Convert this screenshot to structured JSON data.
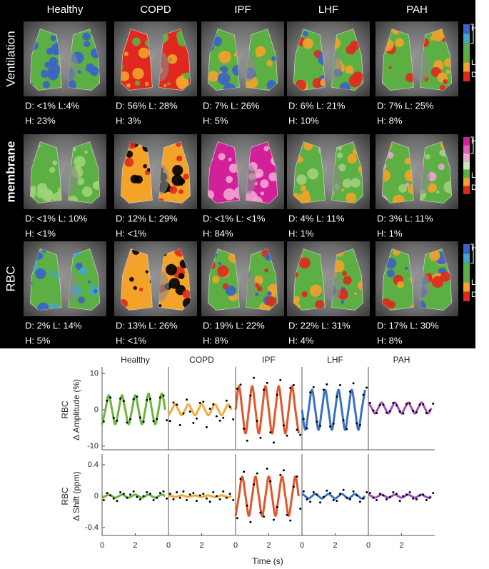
{
  "images": {
    "columns": [
      "Healthy",
      "COPD",
      "IPF",
      "LHF",
      "PAH"
    ],
    "rows": [
      {
        "label": "Ventilation",
        "colorbar": [
          "H",
          "L",
          "D"
        ],
        "stats": [
          [
            "D: <1% L:4%",
            "H: 23%"
          ],
          [
            "D: 56% L: 28%",
            "H: 3%"
          ],
          [
            "D: 7% L: 26%",
            "H: 5%"
          ],
          [
            "D: 6% L: 21%",
            "H: 10%"
          ],
          [
            "D: 7% L: 25%",
            "H: 8%"
          ]
        ]
      },
      {
        "label": "membrane",
        "colorbar": [
          "H",
          "L",
          "D"
        ],
        "stats": [
          [
            "D: <1% L: 10%",
            "H: <1%"
          ],
          [
            "D: 12% L: 29%",
            "H: <1%"
          ],
          [
            "D: <1% L: <1%",
            "H: 84%"
          ],
          [
            "D: 4% L: 11%",
            "H: 1%"
          ],
          [
            "D: 3% L: 11%",
            "H: 1%"
          ]
        ]
      },
      {
        "label": "RBC",
        "colorbar": [
          "H",
          "L",
          "D"
        ],
        "stats": [
          [
            "D: 2% L: 14%",
            "H: 5%"
          ],
          [
            "D: 13% L: 26%",
            "H: <1%"
          ],
          [
            "D: 19% L: 22%",
            "H: 8%"
          ],
          [
            "D: 22% L: 31%",
            "H: 4%"
          ],
          [
            "D: 17% L: 30%",
            "H: 8%"
          ]
        ]
      }
    ]
  },
  "chart_data": [
    {
      "type": "line",
      "ylabel": [
        "RBC",
        "Δ Amplitude (%)"
      ],
      "xlim": [
        0,
        4
      ],
      "ylim": [
        -11,
        11
      ],
      "yticks": [
        -10,
        0,
        10
      ],
      "x": [
        0,
        0.2,
        0.4,
        0.6,
        0.8,
        1.0,
        1.2,
        1.4,
        1.6,
        1.8,
        2.0,
        2.2,
        2.4,
        2.6,
        2.8,
        3.0,
        3.2,
        3.4,
        3.6,
        3.8
      ],
      "x_samples": [
        0.1,
        0.3,
        0.5,
        0.7,
        0.9,
        1.1,
        1.3,
        1.5,
        1.7,
        1.9,
        2.1,
        2.3,
        2.5,
        2.7,
        2.9,
        3.1,
        3.3,
        3.5,
        3.7,
        3.9
      ],
      "panels": [
        {
          "title": "Healthy",
          "series": [
            {
              "style": "line",
              "color": "#6db33f",
              "values": [
                -4,
                0,
                4,
                0,
                -4,
                0,
                4,
                0,
                -4,
                0,
                4,
                0,
                -4,
                0,
                4.5,
                0,
                -4,
                0,
                4.5,
                0
              ]
            },
            {
              "style": "dots",
              "color": "#000000",
              "values": [
                -3.2,
                2.5,
                3.4,
                -2.2,
                -3.0,
                3.1,
                2.4,
                -3.5,
                -2.6,
                2.9,
                3.6,
                -2.1,
                -3.3,
                2.7,
                3.0,
                -3.1,
                -2.5,
                3.4,
                3.9,
                -2.9
              ]
            }
          ]
        },
        {
          "title": "COPD",
          "series": [
            {
              "style": "line",
              "color": "#f2a93b",
              "values": [
                -1.5,
                0,
                1.5,
                0,
                -1.5,
                0,
                1.5,
                0,
                -1.5,
                0,
                1.5,
                0,
                -1.5,
                0,
                1.5,
                0,
                -1.5,
                0,
                1.5,
                0
              ]
            },
            {
              "style": "dots",
              "color": "#000000",
              "values": [
                -3.1,
                2.0,
                1.4,
                -4.2,
                -1.0,
                2.8,
                -0.5,
                -3.6,
                -2.4,
                1.9,
                2.2,
                -4.8,
                0.3,
                1.5,
                -1.8,
                -3.0,
                -2.2,
                2.5,
                0.8,
                -2.6
              ]
            }
          ]
        },
        {
          "title": "IPF",
          "series": [
            {
              "style": "line",
              "color": "#e2562b",
              "values": [
                0,
                6.5,
                0,
                -6.5,
                0,
                6.5,
                0,
                -6.5,
                0,
                6.5,
                0,
                -6.5,
                0,
                6.5,
                0,
                -6.5,
                0,
                6.5,
                0,
                -6.5
              ]
            },
            {
              "style": "dots",
              "color": "#000000",
              "values": [
                5.8,
                6.9,
                -5.2,
                -8.5,
                3.9,
                8.8,
                -3.1,
                -7.7,
                5.5,
                7.4,
                -6.2,
                -9.0,
                4.1,
                8.2,
                -4.3,
                -7.1,
                6.0,
                6.8,
                -5.5,
                -6.9
              ]
            }
          ]
        },
        {
          "title": "LHF",
          "series": [
            {
              "style": "line",
              "color": "#3a6fc4",
              "values": [
                0,
                -5.5,
                0,
                5.5,
                0,
                -5.5,
                0,
                5.5,
                0,
                -5.5,
                0,
                5.5,
                0,
                -5.5,
                0,
                5.5,
                0,
                -5.5,
                0,
                5.5
              ]
            },
            {
              "style": "dots",
              "color": "#000000",
              "values": [
                -2.5,
                -5.1,
                4.8,
                6.2,
                -3.3,
                -4.4,
                5.5,
                7.0,
                -4.6,
                -3.8,
                3.6,
                6.8,
                -2.9,
                -5.3,
                5.0,
                7.3,
                -3.7,
                -4.2,
                4.1,
                6.1
              ]
            }
          ]
        },
        {
          "title": "PAH",
          "series": [
            {
              "style": "line",
              "color": "#a04fc0",
              "values": [
                2,
                0.5,
                -1,
                0.5,
                2,
                0.5,
                -1,
                0.5,
                2,
                0.5,
                -1,
                0.5,
                2,
                0.5,
                -1,
                0.5,
                2,
                0.5,
                -1,
                0.5
              ]
            },
            {
              "style": "dots",
              "color": "#000000",
              "values": [
                1.9,
                -0.2,
                -0.9,
                1.3,
                1.4,
                -0.8,
                -0.4,
                1.9,
                1.2,
                -0.5,
                -1.0,
                1.6,
                1.8,
                -0.3,
                -0.7,
                1.4,
                1.5,
                -0.9,
                -0.2,
                1.7
              ]
            }
          ]
        }
      ]
    },
    {
      "type": "line",
      "ylabel": [
        "RBC",
        "Δ Shift (ppm)"
      ],
      "xlabel": "Time (s)",
      "xlim": [
        0,
        4
      ],
      "ylim": [
        -0.5,
        0.5
      ],
      "yticks": [
        -0.4,
        0,
        0.4
      ],
      "xticks": [
        0,
        2
      ],
      "x": [
        0,
        0.2,
        0.4,
        0.6,
        0.8,
        1.0,
        1.2,
        1.4,
        1.6,
        1.8,
        2.0,
        2.2,
        2.4,
        2.6,
        2.8,
        3.0,
        3.2,
        3.4,
        3.6,
        3.8
      ],
      "x_samples": [
        0.1,
        0.3,
        0.5,
        0.7,
        0.9,
        1.1,
        1.3,
        1.5,
        1.7,
        1.9,
        2.1,
        2.3,
        2.5,
        2.7,
        2.9,
        3.1,
        3.3,
        3.5,
        3.7,
        3.9
      ],
      "panels": [
        {
          "series": [
            {
              "style": "line",
              "color": "#6db33f",
              "values": [
                -0.02,
                0,
                0.02,
                0,
                -0.02,
                0,
                0.02,
                0,
                -0.02,
                0,
                0.02,
                0,
                -0.02,
                0,
                0.02,
                0,
                -0.02,
                0,
                0.02,
                0
              ]
            },
            {
              "style": "dots",
              "color": "#000000",
              "values": [
                -0.05,
                0.04,
                0.01,
                -0.03,
                -0.06,
                0.05,
                0.03,
                -0.02,
                0.02,
                0.06,
                -0.01,
                -0.04,
                0.0,
                0.05,
                0.03,
                -0.05,
                -0.02,
                0.04,
                0.06,
                -0.03
              ]
            }
          ]
        },
        {
          "series": [
            {
              "style": "line",
              "color": "#f2a93b",
              "values": [
                0.01,
                0,
                -0.01,
                0,
                0.01,
                0,
                -0.01,
                0,
                0.01,
                0,
                -0.01,
                0,
                0.01,
                0,
                -0.01,
                0,
                0.01,
                0,
                -0.01,
                0
              ]
            },
            {
              "style": "dots",
              "color": "#000000",
              "values": [
                0.03,
                -0.04,
                0.05,
                -0.02,
                0.06,
                -0.05,
                0.02,
                0.04,
                -0.06,
                0.01,
                0.03,
                -0.03,
                -0.07,
                0.05,
                0.0,
                -0.04,
                0.06,
                -0.02,
                0.03,
                -0.05
              ]
            }
          ]
        },
        {
          "series": [
            {
              "style": "line",
              "color": "#e2562b",
              "values": [
                -0.25,
                0,
                0.25,
                0,
                -0.25,
                0,
                0.25,
                0,
                -0.25,
                0,
                0.25,
                0,
                -0.25,
                0,
                0.25,
                0,
                -0.25,
                0,
                0.25,
                0
              ]
            },
            {
              "style": "dots",
              "color": "#000000",
              "values": [
                -0.28,
                0.22,
                0.31,
                -0.12,
                -0.33,
                0.15,
                0.29,
                -0.21,
                -0.26,
                0.35,
                0.19,
                -0.3,
                -0.14,
                0.27,
                0.33,
                -0.24,
                -0.31,
                0.12,
                0.25,
                -0.16
              ]
            }
          ]
        },
        {
          "series": [
            {
              "style": "line",
              "color": "#3a6fc4",
              "values": [
                0.03,
                0,
                -0.03,
                0,
                0.03,
                0,
                -0.03,
                0,
                0.03,
                0,
                -0.03,
                0,
                0.03,
                0,
                -0.03,
                0,
                0.03,
                0,
                -0.03,
                0
              ]
            },
            {
              "style": "dots",
              "color": "#000000",
              "values": [
                0.06,
                -0.04,
                -0.07,
                0.05,
                0.02,
                -0.08,
                -0.01,
                0.07,
                0.04,
                -0.05,
                -0.06,
                0.03,
                0.08,
                -0.02,
                -0.04,
                0.06,
                0.01,
                -0.07,
                -0.03,
                0.05
              ]
            }
          ]
        },
        {
          "series": [
            {
              "style": "line",
              "color": "#a04fc0",
              "values": [
                0.02,
                0,
                -0.02,
                0,
                0.02,
                0,
                -0.02,
                0,
                0.02,
                0,
                -0.02,
                0,
                0.02,
                0,
                -0.02,
                0,
                0.02,
                0,
                -0.02,
                0
              ]
            },
            {
              "style": "dots",
              "color": "#000000",
              "values": [
                0.04,
                -0.02,
                -0.05,
                0.03,
                0.01,
                -0.04,
                -0.01,
                0.05,
                0.03,
                -0.06,
                0.0,
                0.02,
                0.05,
                -0.03,
                -0.04,
                0.01,
                0.02,
                -0.05,
                -0.02,
                0.04
              ]
            }
          ]
        }
      ]
    }
  ]
}
